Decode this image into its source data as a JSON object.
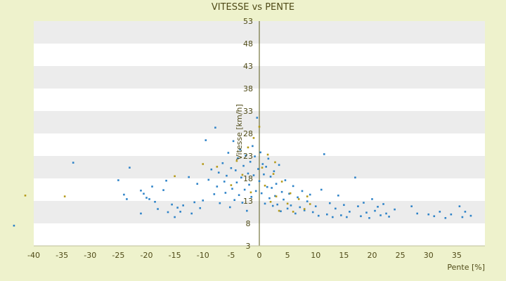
{
  "chart_data": {
    "type": "scatter",
    "title": "VITESSE vs PENTE",
    "xlabel": "Pente [%]",
    "ylabel": "Vitesse [km/h]",
    "xlim": [
      -40,
      40
    ],
    "ylim": [
      3,
      53
    ],
    "x_ticks": [
      "-40",
      "-35",
      "-30",
      "-25",
      "-20",
      "-15",
      "-10",
      "-5",
      "0",
      "5",
      "10",
      "15",
      "20",
      "25",
      "30",
      "35"
    ],
    "y_ticks": [
      "3",
      "8",
      "13",
      "18",
      "23",
      "28",
      "33",
      "38",
      "43",
      "48",
      "53"
    ],
    "grid": "horizontal bands",
    "legend": "none",
    "colors": {
      "series_a": "#2e83c8",
      "series_b": "#b59a1a",
      "band": "#ececec",
      "plot_bg": "#ffffff",
      "axis": "#5a5a1a"
    },
    "series": [
      {
        "color": "#2e83c8",
        "points": [
          [
            -43.5,
            7.5
          ],
          [
            -33,
            21.5
          ],
          [
            -25,
            17.6
          ],
          [
            -23,
            20.4
          ],
          [
            -24,
            14.4
          ],
          [
            -23.5,
            13.4
          ],
          [
            -21,
            15.3
          ],
          [
            -20.5,
            14.6
          ],
          [
            -20,
            13.7
          ],
          [
            -19.5,
            13.4
          ],
          [
            -21,
            10.2
          ],
          [
            -19,
            16.2
          ],
          [
            -18.5,
            12.8
          ],
          [
            -18,
            11.2
          ],
          [
            -17,
            15.4
          ],
          [
            -16.5,
            17.5
          ],
          [
            -16.2,
            10.5
          ],
          [
            -15.5,
            12.2
          ],
          [
            -15,
            9.4
          ],
          [
            -14.5,
            11.5
          ],
          [
            -14,
            10.6
          ],
          [
            -13.5,
            12.0
          ],
          [
            -12.5,
            18.3
          ],
          [
            -12,
            10.2
          ],
          [
            -11.5,
            12.7
          ],
          [
            -11,
            16.8
          ],
          [
            -10.5,
            11.4
          ],
          [
            -10,
            13.1
          ],
          [
            -9.5,
            26.5
          ],
          [
            -9,
            17.7
          ],
          [
            -8.5,
            20.0
          ],
          [
            -8,
            14.5
          ],
          [
            -7.8,
            29.3
          ],
          [
            -7.5,
            16.2
          ],
          [
            -7.2,
            19.3
          ],
          [
            -7,
            12.5
          ],
          [
            -6.5,
            21.4
          ],
          [
            -6.2,
            17.3
          ],
          [
            -6,
            14.8
          ],
          [
            -5.8,
            18.6
          ],
          [
            -5.5,
            23.7
          ],
          [
            -5.2,
            11.6
          ],
          [
            -5,
            20.3
          ],
          [
            -4.8,
            15.7
          ],
          [
            -4.6,
            26.3
          ],
          [
            -4.4,
            13.2
          ],
          [
            -4.2,
            19.8
          ],
          [
            -4,
            17.1
          ],
          [
            -3.8,
            22.5
          ],
          [
            -3.6,
            14.3
          ],
          [
            -3.4,
            24.4
          ],
          [
            -3.2,
            18.2
          ],
          [
            -3,
            12.6
          ],
          [
            -2.8,
            20.8
          ],
          [
            -2.6,
            15.5
          ],
          [
            -2.4,
            23.1
          ],
          [
            -2.2,
            10.8
          ],
          [
            -2,
            19.1
          ],
          [
            -1.8,
            16.6
          ],
          [
            -1.6,
            21.7
          ],
          [
            -1.4,
            13.9
          ],
          [
            -1.2,
            25.2
          ],
          [
            -1,
            18.7
          ],
          [
            -0.8,
            22.9
          ],
          [
            -0.6,
            15.2
          ],
          [
            -0.4,
            31.5
          ],
          [
            -0.2,
            20.1
          ],
          [
            0,
            17.4
          ],
          [
            0.2,
            23.8
          ],
          [
            0.4,
            14.7
          ],
          [
            0.6,
            21.2
          ],
          [
            0.8,
            18.9
          ],
          [
            1,
            12.4
          ],
          [
            1.2,
            20.6
          ],
          [
            1.4,
            16.1
          ],
          [
            1.6,
            22.4
          ],
          [
            1.8,
            13.6
          ],
          [
            2,
            18.4
          ],
          [
            2.2,
            15.9
          ],
          [
            2.4,
            11.9
          ],
          [
            2.6,
            19.6
          ],
          [
            2.8,
            14.1
          ],
          [
            3,
            16.8
          ],
          [
            3.2,
            12.2
          ],
          [
            3.5,
            21.0
          ],
          [
            3.8,
            10.7
          ],
          [
            4,
            15.0
          ],
          [
            4.3,
            13.3
          ],
          [
            4.6,
            17.6
          ],
          [
            5,
            11.3
          ],
          [
            5.3,
            14.6
          ],
          [
            5.6,
            12.0
          ],
          [
            6,
            16.3
          ],
          [
            6.4,
            10.2
          ],
          [
            6.8,
            13.8
          ],
          [
            7.2,
            11.6
          ],
          [
            7.6,
            15.2
          ],
          [
            8,
            10.9
          ],
          [
            8.5,
            12.9
          ],
          [
            9,
            14.4
          ],
          [
            9.5,
            10.5
          ],
          [
            10,
            11.8
          ],
          [
            10.5,
            9.7
          ],
          [
            11,
            15.5
          ],
          [
            11.5,
            23.4
          ],
          [
            12,
            10.0
          ],
          [
            12.5,
            12.5
          ],
          [
            13,
            9.4
          ],
          [
            13.5,
            11.3
          ],
          [
            14,
            14.2
          ],
          [
            14.5,
            9.8
          ],
          [
            15,
            12.1
          ],
          [
            15.5,
            9.4
          ],
          [
            16,
            10.6
          ],
          [
            17,
            18.2
          ],
          [
            17.5,
            11.8
          ],
          [
            18,
            9.6
          ],
          [
            18.5,
            12.6
          ],
          [
            19,
            10.4
          ],
          [
            19.5,
            9.2
          ],
          [
            20,
            13.4
          ],
          [
            20.5,
            10.8
          ],
          [
            21,
            11.7
          ],
          [
            21.5,
            9.8
          ],
          [
            22,
            12.3
          ],
          [
            22.5,
            10.2
          ],
          [
            23,
            9.5
          ],
          [
            24,
            11.1
          ],
          [
            27,
            11.8
          ],
          [
            28,
            10.2
          ],
          [
            30,
            10.0
          ],
          [
            31,
            9.6
          ],
          [
            32,
            10.6
          ],
          [
            33,
            9.2
          ],
          [
            34,
            10.0
          ],
          [
            35.5,
            11.8
          ],
          [
            36,
            9.4
          ],
          [
            36.5,
            10.6
          ],
          [
            37.5,
            9.7
          ]
        ]
      },
      {
        "color": "#b59a1a",
        "points": [
          [
            -41.5,
            14.2
          ],
          [
            -34.5,
            14.0
          ],
          [
            -15,
            18.5
          ],
          [
            -10,
            21.2
          ],
          [
            -7.5,
            20.6
          ],
          [
            -5,
            16.5
          ],
          [
            -4,
            21.9
          ],
          [
            -3,
            18.8
          ],
          [
            -2,
            24.9
          ],
          [
            -1.5,
            14.9
          ],
          [
            -1,
            27.0
          ],
          [
            0,
            29.5
          ],
          [
            0.5,
            20.4
          ],
          [
            1,
            16.4
          ],
          [
            1.5,
            23.3
          ],
          [
            2,
            12.8
          ],
          [
            2.5,
            19.0
          ],
          [
            3,
            14.0
          ],
          [
            3.5,
            10.8
          ],
          [
            4,
            17.3
          ],
          [
            5,
            12.4
          ],
          [
            5.5,
            14.7
          ],
          [
            6,
            10.6
          ],
          [
            7,
            13.4
          ],
          [
            8,
            11.2
          ],
          [
            8.5,
            14.0
          ],
          [
            9,
            12.3
          ],
          [
            2.8,
            21.6
          ]
        ]
      }
    ]
  }
}
